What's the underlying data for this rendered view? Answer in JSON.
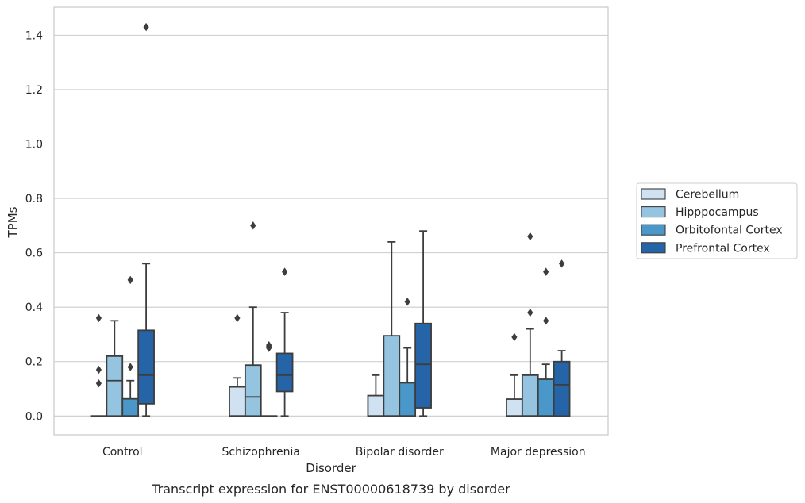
{
  "chart_data": {
    "type": "box",
    "caption": "Transcript expression for ENST00000618739 by disorder",
    "xlabel": "Disorder",
    "ylabel": "TPMs",
    "ylim": [
      -0.07,
      1.5
    ],
    "yticks": [
      0.0,
      0.2,
      0.4,
      0.6,
      0.8,
      1.0,
      1.2,
      1.4
    ],
    "ytick_labels": [
      "0.0",
      "0.2",
      "0.4",
      "0.6",
      "0.8",
      "1.0",
      "1.2",
      "1.4"
    ],
    "grid": "horizontal",
    "legend_position": "right",
    "categories": [
      "Control",
      "Schizophrenia",
      "Bipolar disorder",
      "Major depression"
    ],
    "series": [
      {
        "name": "Cerebellum",
        "color": "#d0e1f2",
        "boxes": [
          {
            "q1": 0.0,
            "median": 0.0,
            "q3": 0.0,
            "whisker_low": 0.0,
            "whisker_high": 0.0,
            "outliers": [
              0.36,
              0.17,
              0.12
            ]
          },
          {
            "q1": 0.0,
            "median": 0.0,
            "q3": 0.107,
            "whisker_low": 0.0,
            "whisker_high": 0.14,
            "outliers": [
              0.36
            ]
          },
          {
            "q1": 0.0,
            "median": 0.0,
            "q3": 0.075,
            "whisker_low": 0.0,
            "whisker_high": 0.15,
            "outliers": []
          },
          {
            "q1": 0.0,
            "median": 0.0,
            "q3": 0.062,
            "whisker_low": 0.0,
            "whisker_high": 0.15,
            "outliers": [
              0.29
            ]
          }
        ]
      },
      {
        "name": "Hipppocampus",
        "color": "#94c4df",
        "boxes": [
          {
            "q1": 0.0,
            "median": 0.13,
            "q3": 0.22,
            "whisker_low": 0.0,
            "whisker_high": 0.35,
            "outliers": []
          },
          {
            "q1": 0.0,
            "median": 0.07,
            "q3": 0.187,
            "whisker_low": 0.0,
            "whisker_high": 0.4,
            "outliers": [
              0.7
            ]
          },
          {
            "q1": 0.0,
            "median": 0.0,
            "q3": 0.295,
            "whisker_low": 0.0,
            "whisker_high": 0.64,
            "outliers": []
          },
          {
            "q1": 0.0,
            "median": 0.0,
            "q3": 0.15,
            "whisker_low": 0.0,
            "whisker_high": 0.32,
            "outliers": [
              0.66,
              0.38
            ]
          }
        ]
      },
      {
        "name": "Orbitofontal Cortex",
        "color": "#4a98c9",
        "boxes": [
          {
            "q1": 0.0,
            "median": 0.0,
            "q3": 0.063,
            "whisker_low": 0.0,
            "whisker_high": 0.13,
            "outliers": [
              0.5,
              0.18
            ]
          },
          {
            "q1": 0.0,
            "median": 0.0,
            "q3": 0.0,
            "whisker_low": 0.0,
            "whisker_high": 0.0,
            "outliers": [
              0.26,
              0.255,
              0.25
            ]
          },
          {
            "q1": 0.0,
            "median": 0.0,
            "q3": 0.122,
            "whisker_low": 0.0,
            "whisker_high": 0.25,
            "outliers": [
              0.42
            ]
          },
          {
            "q1": 0.0,
            "median": 0.0,
            "q3": 0.135,
            "whisker_low": 0.0,
            "whisker_high": 0.19,
            "outliers": [
              0.53,
              0.35
            ]
          }
        ]
      },
      {
        "name": "Prefrontal Cortex",
        "color": "#2664a8",
        "boxes": [
          {
            "q1": 0.045,
            "median": 0.15,
            "q3": 0.315,
            "whisker_low": 0.0,
            "whisker_high": 0.56,
            "outliers": [
              1.43
            ]
          },
          {
            "q1": 0.09,
            "median": 0.15,
            "q3": 0.23,
            "whisker_low": 0.0,
            "whisker_high": 0.38,
            "outliers": [
              0.53
            ]
          },
          {
            "q1": 0.03,
            "median": 0.19,
            "q3": 0.34,
            "whisker_low": 0.0,
            "whisker_high": 0.68,
            "outliers": []
          },
          {
            "q1": 0.0,
            "median": 0.115,
            "q3": 0.2,
            "whisker_low": 0.0,
            "whisker_high": 0.24,
            "outliers": [
              0.56
            ]
          }
        ]
      }
    ]
  }
}
